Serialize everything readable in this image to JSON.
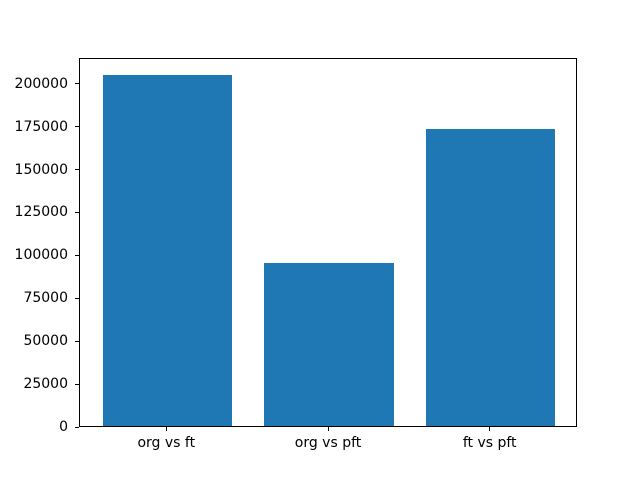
{
  "chart_data": {
    "type": "bar",
    "title": "",
    "xlabel": "",
    "ylabel": "",
    "categories": [
      "org vs ft",
      "org vs pft",
      "ft vs pft"
    ],
    "values": [
      204800,
      95200,
      173000
    ],
    "bar_color": "#1f77b4",
    "bar_width_fraction": 0.8,
    "xlim": [
      -0.54,
      2.54
    ],
    "ylim": [
      0,
      215000
    ],
    "yticks": [
      0,
      25000,
      50000,
      75000,
      100000,
      125000,
      150000,
      175000,
      200000
    ],
    "grid": false,
    "legend": null,
    "background_color": "#ffffff",
    "spine_color": "#000000",
    "tick_label_color": "#000000"
  }
}
